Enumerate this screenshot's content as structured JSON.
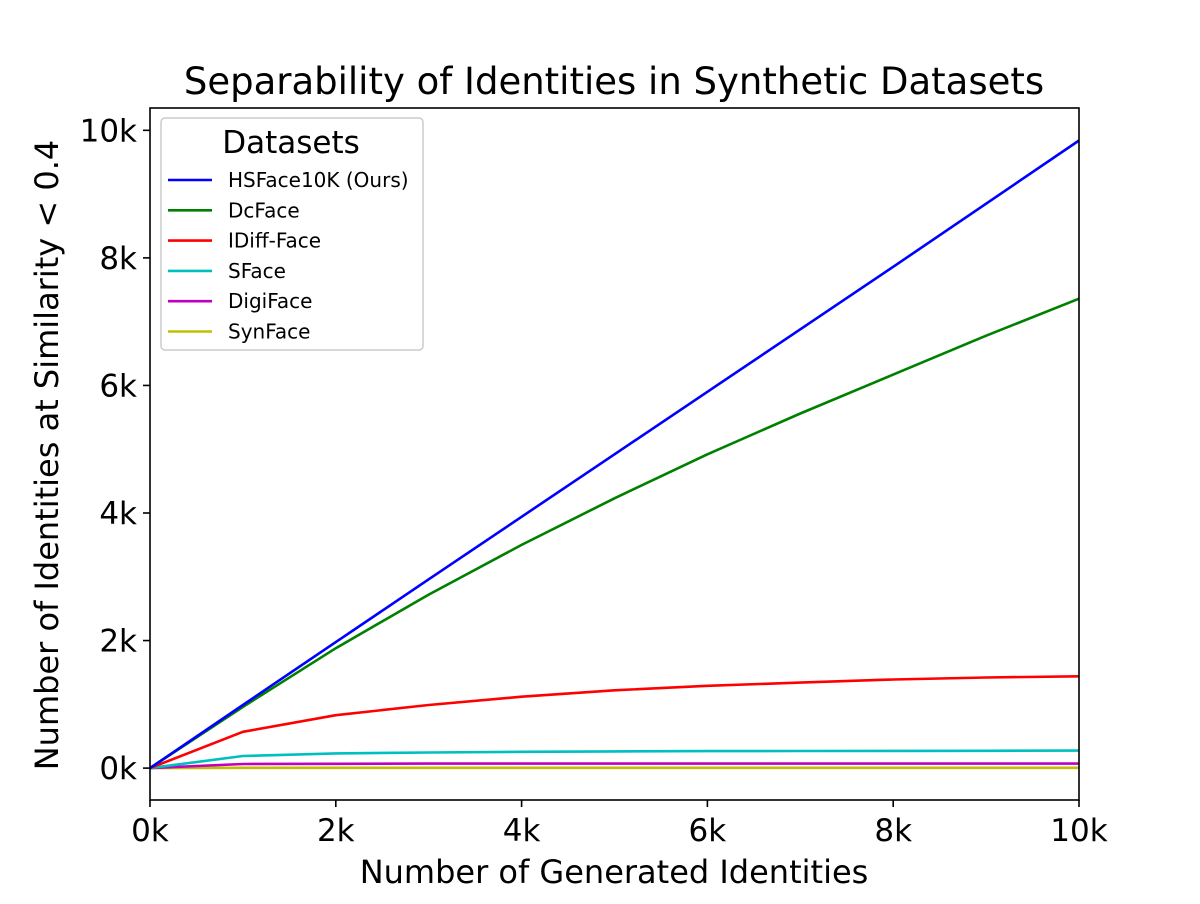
{
  "chart_data": {
    "type": "line",
    "title": "Separability of Identities in Synthetic Datasets",
    "xlabel": "Number of Generated Identities",
    "ylabel": "Number of Identities at Similarity < 0.4",
    "xlim": [
      0,
      10000
    ],
    "ylim": [
      -500,
      10350
    ],
    "x_ticks": [
      0,
      2000,
      4000,
      6000,
      8000,
      10000
    ],
    "x_tick_labels": [
      "0k",
      "2k",
      "4k",
      "6k",
      "8k",
      "10k"
    ],
    "y_ticks": [
      0,
      2000,
      4000,
      6000,
      8000,
      10000
    ],
    "y_tick_labels": [
      "0k",
      "2k",
      "4k",
      "6k",
      "8k",
      "10k"
    ],
    "grid": false,
    "legend_title": "Datasets",
    "legend_position": "top-left",
    "x": [
      0,
      1000,
      2000,
      3000,
      4000,
      5000,
      6000,
      7000,
      8000,
      9000,
      10000
    ],
    "series": [
      {
        "name": "HSFace10K (Ours)",
        "color": "#0000ff",
        "values": [
          0,
          990,
          1975,
          2960,
          3940,
          4920,
          5900,
          6880,
          7860,
          8850,
          9840
        ]
      },
      {
        "name": "DcFace",
        "color": "#008000",
        "values": [
          0,
          960,
          1880,
          2720,
          3500,
          4230,
          4920,
          5560,
          6170,
          6780,
          7360
        ]
      },
      {
        "name": "IDiff-Face",
        "color": "#ff0000",
        "values": [
          0,
          570,
          830,
          990,
          1120,
          1220,
          1290,
          1340,
          1390,
          1420,
          1440
        ]
      },
      {
        "name": "SFace",
        "color": "#00bfbf",
        "values": [
          0,
          190,
          230,
          245,
          255,
          262,
          266,
          268,
          270,
          272,
          274
        ]
      },
      {
        "name": "DigiFace",
        "color": "#bf00bf",
        "values": [
          0,
          65,
          68,
          70,
          70,
          70,
          70,
          70,
          70,
          70,
          70
        ]
      },
      {
        "name": "SynFace",
        "color": "#bfbf00",
        "values": [
          0,
          5,
          5,
          5,
          5,
          5,
          5,
          5,
          5,
          5,
          5
        ]
      }
    ]
  }
}
